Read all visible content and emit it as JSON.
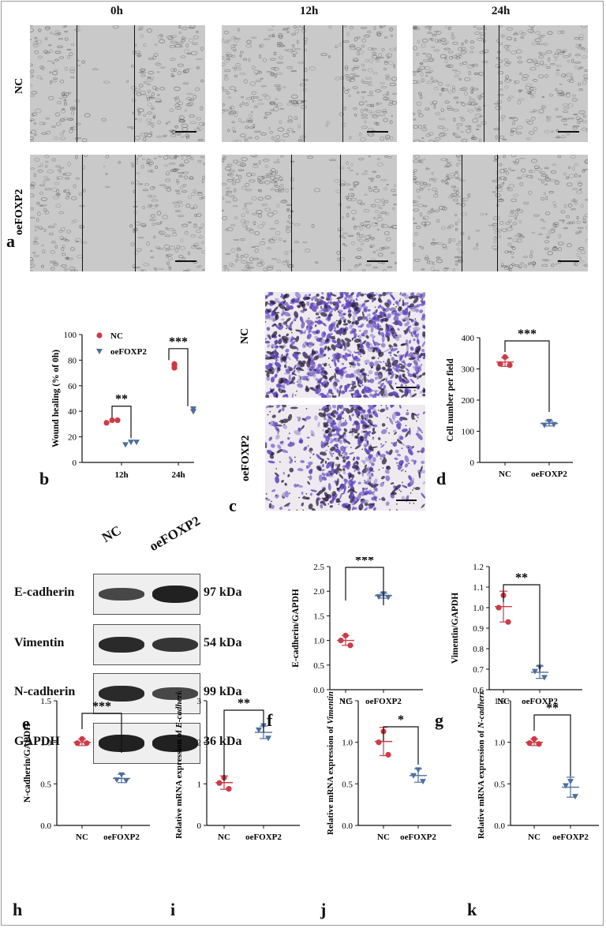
{
  "figure_labels": {
    "a": "a",
    "b": "b",
    "c": "c",
    "d": "d",
    "e": "e",
    "f": "f",
    "g": "g",
    "h": "h",
    "i": "i",
    "j": "j",
    "k": "k"
  },
  "panel_a": {
    "time_labels": [
      "0h",
      "12h",
      "24h"
    ],
    "row_labels": [
      "NC",
      "oeFOXP2"
    ]
  },
  "panel_c": {
    "row_labels": [
      "NC",
      "oeFOXP2"
    ]
  },
  "panel_e": {
    "lane_labels": [
      "NC",
      "oeFOXP2"
    ],
    "proteins": [
      {
        "name": "E-cadherin",
        "size": "97 kDa"
      },
      {
        "name": "Vimentin",
        "size": "54 kDa"
      },
      {
        "name": "N-cadherin",
        "size": "99 kDa"
      },
      {
        "name": "GAPDH",
        "size": "36 kDa"
      }
    ]
  },
  "colors": {
    "nc": "#cc3b47",
    "oe": "#4e6e9d"
  },
  "chart_data": [
    {
      "id": "b",
      "type": "scatter",
      "ylabel": "Wound healing (% of 0h)",
      "categories": [
        "12h",
        "24h"
      ],
      "ylim": [
        0,
        100
      ],
      "yticks": [
        0,
        20,
        40,
        60,
        80,
        100
      ],
      "legend": [
        "NC",
        "oeFOXP2"
      ],
      "series": [
        {
          "name": "NC",
          "points": [
            [
              0,
              33
            ],
            [
              0,
              31
            ],
            [
              0,
              33
            ],
            [
              1,
              77
            ],
            [
              1,
              74
            ],
            [
              1,
              76
            ]
          ]
        },
        {
          "name": "oeFOXP2",
          "points": [
            [
              0,
              16
            ],
            [
              0,
              14
            ],
            [
              0,
              16
            ],
            [
              1,
              40
            ],
            [
              1,
              40
            ],
            [
              1,
              42
            ]
          ]
        }
      ],
      "significance": [
        {
          "cat": 0,
          "text": "**"
        },
        {
          "cat": 1,
          "text": "***"
        }
      ]
    },
    {
      "id": "d",
      "type": "scatter",
      "ylabel": "Cell number per field",
      "categories": [
        "NC",
        "oeFOXP2"
      ],
      "ylim": [
        0,
        400
      ],
      "yticks": [
        0,
        100,
        200,
        300,
        400
      ],
      "groups": [
        {
          "name": "NC",
          "mean": 322,
          "sd": 14,
          "points": [
            338,
            316,
            312
          ]
        },
        {
          "name": "oeFOXP2",
          "mean": 125,
          "sd": 8,
          "points": [
            132,
            120,
            122
          ]
        }
      ],
      "significance": "***"
    },
    {
      "id": "f",
      "type": "scatter",
      "ylabel": "E-cadherin/GAPDH",
      "categories": [
        "NC",
        "oeFOXP2"
      ],
      "ylim": [
        0,
        2.5
      ],
      "yticks": [
        0.0,
        0.5,
        1.0,
        1.5,
        2.0,
        2.5
      ],
      "groups": [
        {
          "name": "NC",
          "mean": 1.0,
          "sd": 0.1,
          "points": [
            1.1,
            1.0,
            0.9
          ]
        },
        {
          "name": "oeFOXP2",
          "mean": 1.91,
          "sd": 0.05,
          "points": [
            1.95,
            1.89,
            1.88
          ]
        }
      ],
      "significance": "***"
    },
    {
      "id": "g",
      "type": "scatter",
      "ylabel": "Vimentin/GAPDH",
      "categories": [
        "NC",
        "oeFOXP2"
      ],
      "ylim": [
        0.6,
        1.2
      ],
      "yticks": [
        0.6,
        0.7,
        0.8,
        0.9,
        1.0,
        1.1,
        1.2
      ],
      "groups": [
        {
          "name": "NC",
          "mean": 1.005,
          "sd": 0.075,
          "points": [
            1.06,
            1.0,
            0.93
          ]
        },
        {
          "name": "oeFOXP2",
          "mean": 0.685,
          "sd": 0.03,
          "points": [
            0.71,
            0.69,
            0.66
          ]
        }
      ],
      "significance": "**"
    },
    {
      "id": "h",
      "type": "scatter",
      "ylabel": "N-cadherin/GAPDH",
      "categories": [
        "NC",
        "oeFOXP2"
      ],
      "ylim": [
        0,
        1.5
      ],
      "yticks": [
        0.0,
        0.5,
        1.0,
        1.5
      ],
      "groups": [
        {
          "name": "NC",
          "mean": 1.0,
          "sd": 0.04,
          "points": [
            1.04,
            0.99,
            0.99
          ]
        },
        {
          "name": "oeFOXP2",
          "mean": 0.565,
          "sd": 0.05,
          "points": [
            0.61,
            0.55,
            0.54
          ]
        }
      ],
      "significance": "***"
    },
    {
      "id": "i",
      "type": "scatter",
      "ylabel": "Relative mRNA expression of E-cadherin",
      "ylabel_plain": "Relative mRNA expression of ",
      "ylabel_italic": "E-cadherin",
      "categories": [
        "NC",
        "oeFOXP2"
      ],
      "ylim": [
        0,
        3
      ],
      "yticks": [
        0,
        1,
        2,
        3
      ],
      "groups": [
        {
          "name": "NC",
          "mean": 1.03,
          "sd": 0.16,
          "points": [
            1.15,
            1.02,
            0.88
          ]
        },
        {
          "name": "oeFOXP2",
          "mean": 2.24,
          "sd": 0.15,
          "points": [
            2.4,
            2.3,
            2.1
          ]
        }
      ],
      "significance": "**"
    },
    {
      "id": "j",
      "type": "scatter",
      "ylabel": "Relative mRNA expression of Vimentin",
      "ylabel_plain": "Relative mRNA expression of ",
      "ylabel_italic": "Vimentin",
      "categories": [
        "NC",
        "oeFOXP2"
      ],
      "ylim": [
        0,
        1.5
      ],
      "yticks": [
        0.0,
        0.5,
        1.0,
        1.5
      ],
      "groups": [
        {
          "name": "NC",
          "mean": 1.01,
          "sd": 0.17,
          "points": [
            1.13,
            1.0,
            0.85
          ]
        },
        {
          "name": "oeFOXP2",
          "mean": 0.6,
          "sd": 0.08,
          "points": [
            0.67,
            0.6,
            0.53
          ]
        }
      ],
      "significance": "*"
    },
    {
      "id": "k",
      "type": "scatter",
      "ylabel": "Relative mRNA expression of N-cadherin",
      "ylabel_plain": "Relative mRNA expression of ",
      "ylabel_italic": "N-cadherin",
      "categories": [
        "NC",
        "oeFOXP2"
      ],
      "ylim": [
        0,
        1.5
      ],
      "yticks": [
        0.0,
        0.5,
        1.0,
        1.5
      ],
      "groups": [
        {
          "name": "NC",
          "mean": 1.0,
          "sd": 0.04,
          "points": [
            1.04,
            0.99,
            0.98
          ]
        },
        {
          "name": "oeFOXP2",
          "mean": 0.46,
          "sd": 0.12,
          "points": [
            0.53,
            0.48,
            0.35
          ]
        }
      ],
      "significance": "**"
    }
  ]
}
